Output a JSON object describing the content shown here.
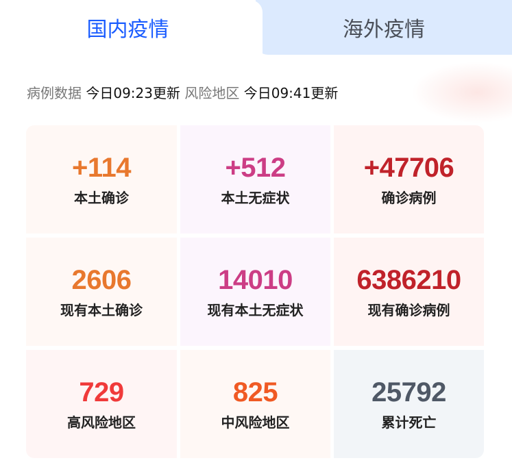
{
  "tabs": [
    {
      "label": "国内疫情",
      "active": true
    },
    {
      "label": "海外疫情",
      "active": false
    }
  ],
  "update": {
    "case_label": "病例数据",
    "case_time": "今日09:23更新",
    "risk_label": "风险地区",
    "risk_time": "今日09:41更新"
  },
  "stats": [
    {
      "value": "+114",
      "label": "本土确诊",
      "color": "#e8782e",
      "bg": "#fff8f5"
    },
    {
      "value": "+512",
      "label": "本土无症状",
      "color": "#cc3d85",
      "bg": "#fcf5fd"
    },
    {
      "value": "+47706",
      "label": "确诊病例",
      "color": "#c0222a",
      "bg": "#fff4f3"
    },
    {
      "value": "2606",
      "label": "现有本土确诊",
      "color": "#e8782e",
      "bg": "#fff8f5"
    },
    {
      "value": "14010",
      "label": "现有本土无症状",
      "color": "#cc3d85",
      "bg": "#fcf5fd"
    },
    {
      "value": "6386210",
      "label": "现有确诊病例",
      "color": "#c0222a",
      "bg": "#fff4f3"
    },
    {
      "value": "729",
      "label": "高风险地区",
      "color": "#f03a3a",
      "bg": "#fff5f5"
    },
    {
      "value": "825",
      "label": "中风险地区",
      "color": "#f05a24",
      "bg": "#fff8f5"
    },
    {
      "value": "25792",
      "label": "累计死亡",
      "color": "#4f5866",
      "bg": "#f2f5f8"
    }
  ]
}
